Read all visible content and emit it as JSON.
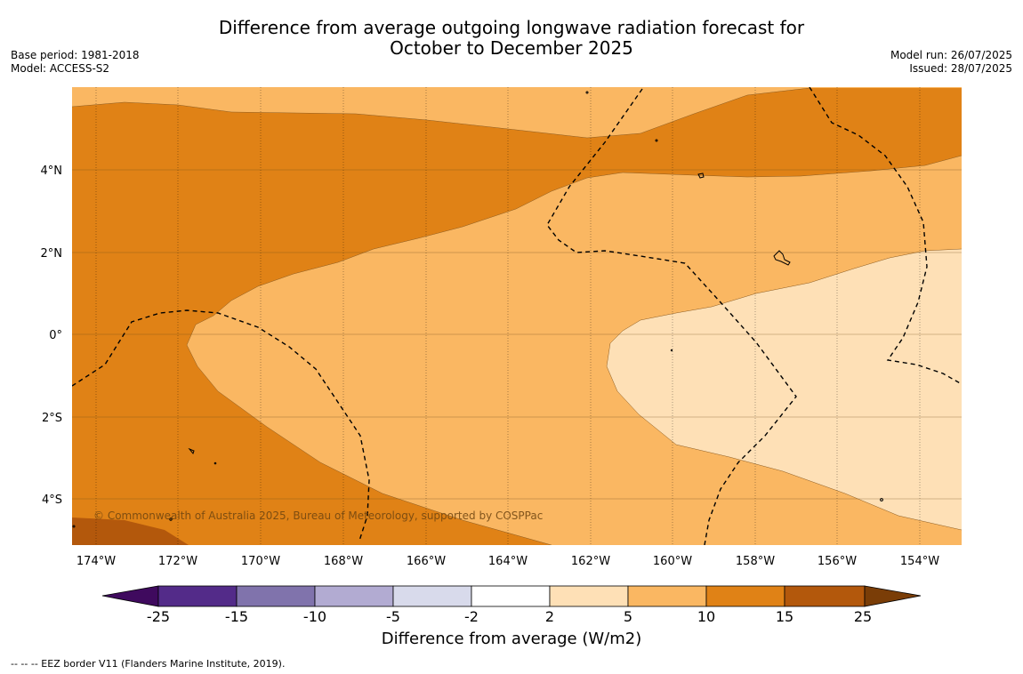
{
  "title": {
    "line1": "Difference from average outgoing longwave radiation forecast for",
    "line2": "October to December 2025"
  },
  "meta_left": {
    "base_period": "Base period: 1981-2018",
    "model": "Model: ACCESS-S2"
  },
  "meta_right": {
    "model_run": "Model run: 26/07/2025",
    "issued": "Issued: 28/07/2025"
  },
  "map": {
    "lon_ticks": [
      "174°W",
      "172°W",
      "170°W",
      "168°W",
      "166°W",
      "164°W",
      "162°W",
      "160°W",
      "158°W",
      "156°W",
      "154°W"
    ],
    "lat_ticks": [
      "4°N",
      "2°N",
      "0°",
      "2°S",
      "4°S"
    ],
    "copyright": "© Commonwealth of Australia 2025, Bureau of Meteorology, supported by COSPPac",
    "colors": {
      "band_5_10": "#fab762",
      "band_10_15": "#e08216",
      "band_15_25": "#b3580c",
      "band_2_5": "#fee0b6"
    }
  },
  "colorbar": {
    "labels": [
      "-25",
      "-15",
      "-10",
      "-5",
      "-2",
      "2",
      "5",
      "10",
      "15",
      "25"
    ],
    "colors": [
      "#3f0a5e",
      "#532b89",
      "#8073ac",
      "#b2abd2",
      "#d8daeb",
      "#ffffff",
      "#fee0b6",
      "#fab762",
      "#e08216",
      "#b3580c",
      "#7a3d07"
    ],
    "title": "Difference from average (W/m2)"
  },
  "footer": "--  --  -- EEZ border V11 (Flanders Marine Institute, 2019)."
}
